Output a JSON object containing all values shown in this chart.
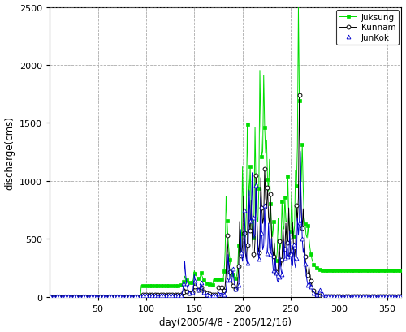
{
  "xlabel": "day(2005/4/8 - 2005/12/16)",
  "ylabel": "discharge(cms)",
  "xlim": [
    0,
    365
  ],
  "ylim": [
    0,
    2500
  ],
  "xticks": [
    50,
    100,
    150,
    200,
    250,
    300,
    350
  ],
  "yticks": [
    0,
    500,
    1000,
    1500,
    2000,
    2500
  ],
  "legend": [
    "Juksung",
    "Kunnam",
    "JunKok"
  ],
  "colors": {
    "Juksung": "#00dd00",
    "Kunnam": "#000000",
    "JunKok": "#0000cc"
  },
  "markers": {
    "Juksung": "s",
    "Kunnam": "o",
    "JunKok": "^"
  },
  "background": "#ffffff",
  "grid_color": "#888888",
  "figsize": [
    5.0,
    4.1
  ],
  "dpi": 100
}
